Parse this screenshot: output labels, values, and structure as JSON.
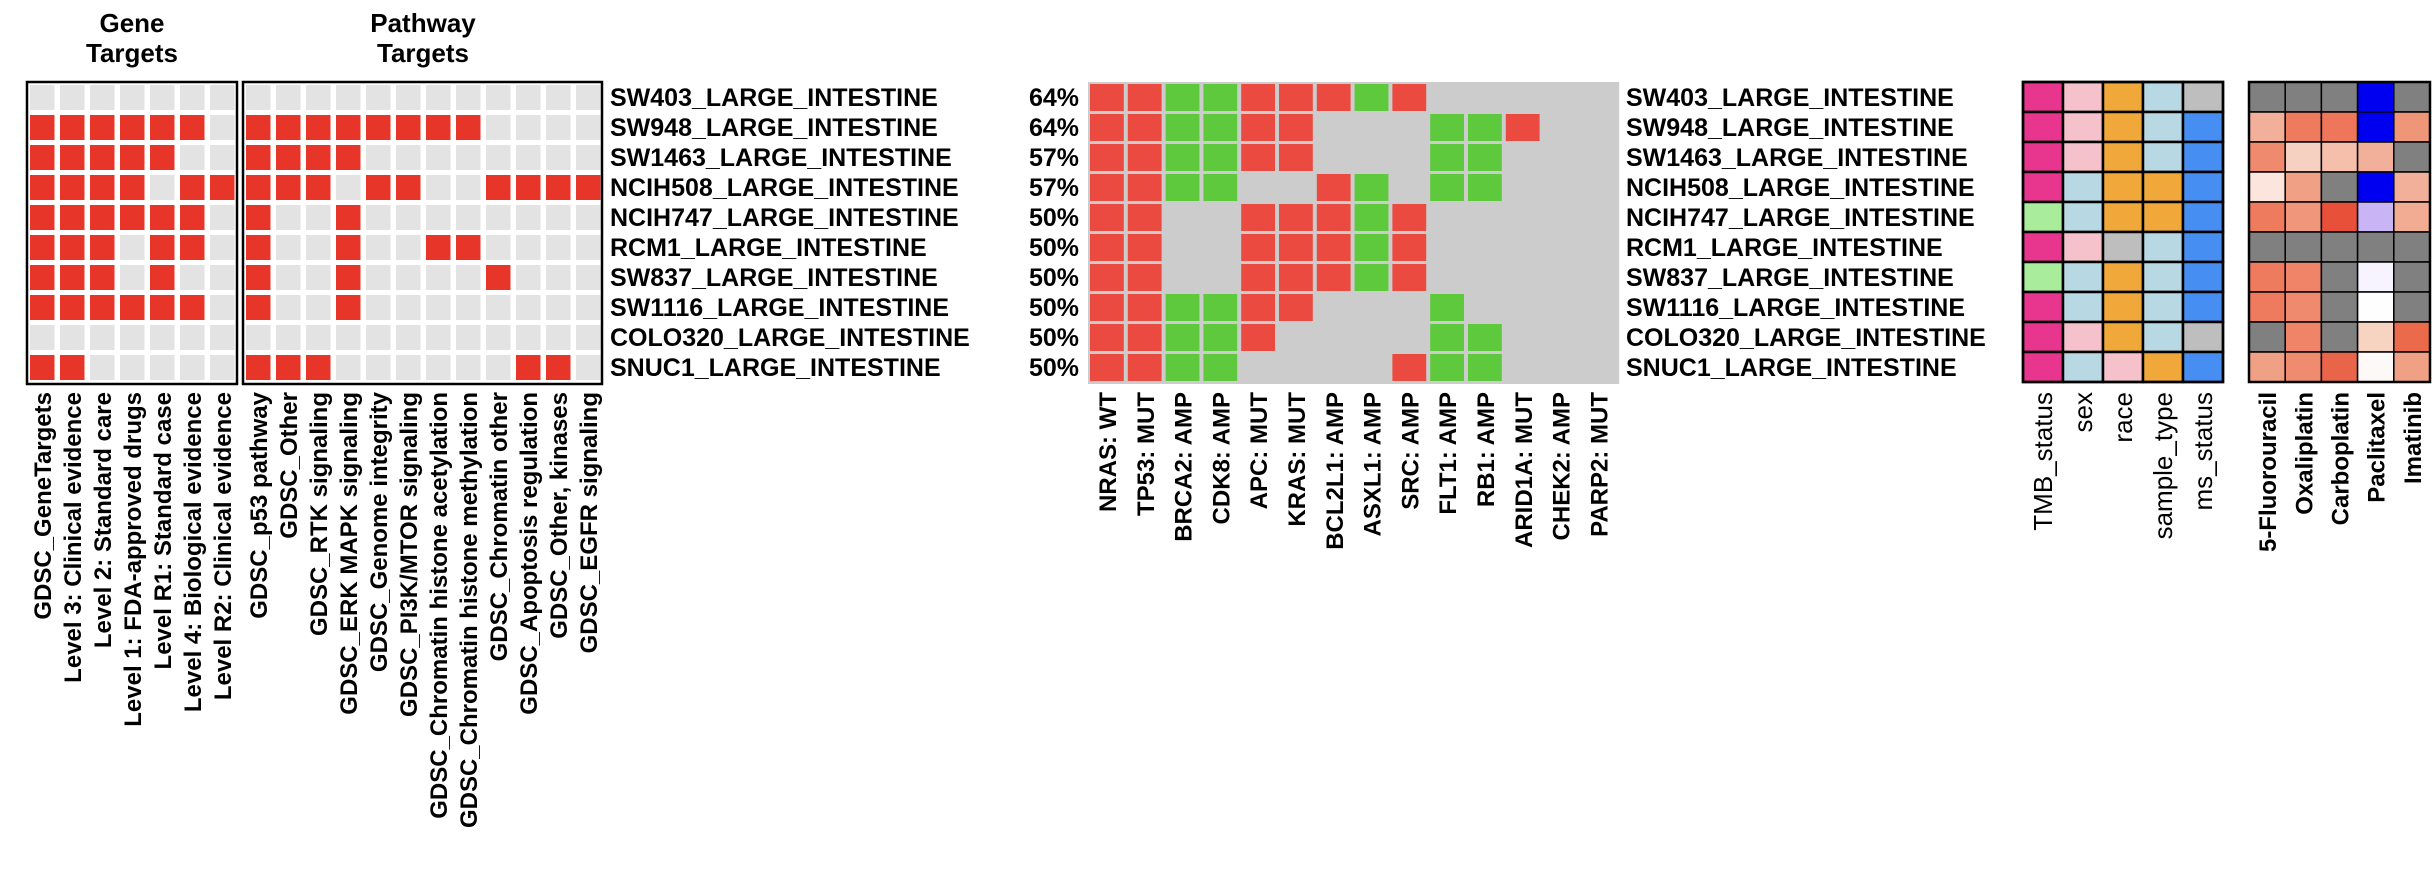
{
  "chart_data": {
    "type": "heatmap",
    "panels": {
      "gene_targets": {
        "title": [
          "Gene",
          "Targets"
        ],
        "columns": [
          "GDSC_GeneTargets",
          "Level 3: Clinical evidence",
          "Level 2: Standard care",
          "Level 1: FDA-approved drugs",
          "Level R1: Standard case",
          "Level 4: Biological evidence",
          "Level R2: Clinical evidence"
        ],
        "matrix": [
          [
            0,
            0,
            0,
            0,
            0,
            0,
            0
          ],
          [
            1,
            1,
            1,
            1,
            1,
            1,
            0
          ],
          [
            1,
            1,
            1,
            1,
            1,
            0,
            0
          ],
          [
            1,
            1,
            1,
            1,
            0,
            1,
            1
          ],
          [
            1,
            1,
            1,
            1,
            1,
            1,
            0
          ],
          [
            1,
            1,
            1,
            0,
            1,
            1,
            0
          ],
          [
            1,
            1,
            1,
            0,
            1,
            0,
            0
          ],
          [
            1,
            1,
            1,
            1,
            1,
            1,
            0
          ],
          [
            0,
            0,
            0,
            0,
            0,
            0,
            0
          ],
          [
            1,
            1,
            0,
            0,
            0,
            0,
            0
          ]
        ]
      },
      "pathway_targets": {
        "title": [
          "Pathway",
          "Targets"
        ],
        "columns": [
          "GDSC_p53 pathway",
          "GDSC_Other",
          "GDSC_RTK signaling",
          "GDSC_ERK MAPK signaling",
          "GDSC_Genome integrity",
          "GDSC_PI3K/MTOR signaling",
          "GDSC_Chromatin histone acetylation",
          "GDSC_Chromatin histone methylation",
          "GDSC_Chromatin other",
          "GDSC_Apoptosis regulation",
          "GDSC_Other, kinases",
          "GDSC_EGFR signaling"
        ],
        "matrix": [
          [
            0,
            0,
            0,
            0,
            0,
            0,
            0,
            0,
            0,
            0,
            0,
            0
          ],
          [
            1,
            1,
            1,
            1,
            1,
            1,
            1,
            1,
            0,
            0,
            0,
            0
          ],
          [
            1,
            1,
            1,
            1,
            0,
            0,
            0,
            0,
            0,
            0,
            0,
            0
          ],
          [
            1,
            1,
            1,
            0,
            1,
            1,
            0,
            0,
            1,
            1,
            1,
            1
          ],
          [
            1,
            0,
            0,
            1,
            0,
            0,
            0,
            0,
            0,
            0,
            0,
            0
          ],
          [
            1,
            0,
            0,
            1,
            0,
            0,
            1,
            1,
            0,
            0,
            0,
            0
          ],
          [
            1,
            0,
            0,
            1,
            0,
            0,
            0,
            0,
            1,
            0,
            0,
            0
          ],
          [
            1,
            0,
            0,
            1,
            0,
            0,
            0,
            0,
            0,
            0,
            0,
            0
          ],
          [
            0,
            0,
            0,
            0,
            0,
            0,
            0,
            0,
            0,
            0,
            0,
            0
          ],
          [
            1,
            1,
            1,
            0,
            0,
            0,
            0,
            0,
            0,
            1,
            1,
            0
          ]
        ]
      },
      "alterations": {
        "columns": [
          "NRAS: WT",
          "TP53: MUT",
          "BRCA2: AMP",
          "CDK8: AMP",
          "APC: MUT",
          "KRAS: MUT",
          "BCL2L1: AMP",
          "ASXL1: AMP",
          "SRC: AMP",
          "FLT1: AMP",
          "RB1: AMP",
          "ARID1A: MUT",
          "CHEK2: AMP",
          "PARP2: MUT"
        ],
        "percentages": [
          "64%",
          "64%",
          "57%",
          "57%",
          "50%",
          "50%",
          "50%",
          "50%",
          "50%",
          "50%"
        ],
        "matrix": [
          [
            "MUT",
            "MUT",
            "AMP",
            "AMP",
            "MUT",
            "MUT",
            "MUT",
            "AMP",
            "MUT",
            "",
            "",
            "",
            "",
            ""
          ],
          [
            "MUT",
            "MUT",
            "AMP",
            "AMP",
            "MUT",
            "MUT",
            "",
            "",
            "",
            "AMP",
            "AMP",
            "MUT",
            "",
            ""
          ],
          [
            "MUT",
            "MUT",
            "AMP",
            "AMP",
            "MUT",
            "MUT",
            "",
            "",
            "",
            "AMP",
            "AMP",
            "",
            "",
            ""
          ],
          [
            "MUT",
            "MUT",
            "AMP",
            "AMP",
            "",
            "",
            "MUT",
            "AMP",
            "",
            "AMP",
            "AMP",
            "",
            "",
            ""
          ],
          [
            "MUT",
            "MUT",
            "",
            "",
            "MUT",
            "MUT",
            "MUT",
            "AMP",
            "MUT",
            "",
            "",
            "",
            "",
            ""
          ],
          [
            "MUT",
            "MUT",
            "",
            "",
            "MUT",
            "MUT",
            "MUT",
            "AMP",
            "MUT",
            "",
            "",
            "",
            "",
            ""
          ],
          [
            "MUT",
            "MUT",
            "",
            "",
            "MUT",
            "MUT",
            "MUT",
            "AMP",
            "MUT",
            "",
            "",
            "",
            "",
            ""
          ],
          [
            "MUT",
            "MUT",
            "AMP",
            "AMP",
            "MUT",
            "MUT",
            "",
            "",
            "",
            "AMP",
            "",
            "",
            "",
            ""
          ],
          [
            "MUT",
            "MUT",
            "AMP",
            "AMP",
            "MUT",
            "",
            "",
            "",
            "",
            "AMP",
            "AMP",
            "",
            "",
            ""
          ],
          [
            "MUT",
            "MUT",
            "AMP",
            "AMP",
            "",
            "",
            "",
            "",
            "MUT",
            "AMP",
            "AMP",
            "",
            "",
            ""
          ]
        ]
      },
      "annotations": {
        "columns": [
          "TMB_status",
          "sex",
          "race",
          "sample_type",
          "ms_status"
        ],
        "colors": [
          [
            "#e8368f",
            "#f5c2cc",
            "#f0a83a",
            "#b8d8e3",
            "#bebebe"
          ],
          [
            "#e8368f",
            "#f5c2cc",
            "#f0a83a",
            "#b8d8e3",
            "#478ef2"
          ],
          [
            "#e8368f",
            "#f5c2cc",
            "#f0a83a",
            "#b8d8e3",
            "#478ef2"
          ],
          [
            "#e8368f",
            "#b8d8e3",
            "#f0a83a",
            "#f0a83a",
            "#478ef2"
          ],
          [
            "#a9ec9b",
            "#b8d8e3",
            "#f0a83a",
            "#f0a83a",
            "#478ef2"
          ],
          [
            "#e8368f",
            "#f5c2cc",
            "#bebebe",
            "#b8d8e3",
            "#478ef2"
          ],
          [
            "#a9ec9b",
            "#b8d8e3",
            "#f0a83a",
            "#b8d8e3",
            "#478ef2"
          ],
          [
            "#e8368f",
            "#b8d8e3",
            "#f0a83a",
            "#b8d8e3",
            "#478ef2"
          ],
          [
            "#e8368f",
            "#f5c2cc",
            "#f0a83a",
            "#b8d8e3",
            "#bebebe"
          ],
          [
            "#e8368f",
            "#b8d8e3",
            "#f5c2cc",
            "#f0a83a",
            "#478ef2"
          ]
        ]
      },
      "drugs": {
        "columns": [
          "5-Fluorouracil",
          "Oxaliplatin",
          "Carboplatin",
          "Paclitaxel",
          "Imatinib"
        ],
        "colors": [
          [
            "#808080",
            "#808080",
            "#808080",
            "#0000f0",
            "#808080"
          ],
          [
            "#f2b09a",
            "#ee7b5e",
            "#ee765a",
            "#0000f0",
            "#f09678"
          ],
          [
            "#ef8a6e",
            "#f6d0c0",
            "#f5bfab",
            "#f2b09a",
            "#808080"
          ],
          [
            "#fbe5dc",
            "#f0a085",
            "#808080",
            "#0000f0",
            "#f2b09a"
          ],
          [
            "#ee7b5e",
            "#f0967a",
            "#e9503a",
            "#c9b5f5",
            "#f2ac94"
          ],
          [
            "#808080",
            "#808080",
            "#808080",
            "#808080",
            "#808080"
          ],
          [
            "#ee7b5e",
            "#ef8468",
            "#808080",
            "#f7f4ff",
            "#808080"
          ],
          [
            "#ee7b5e",
            "#ef8a6e",
            "#808080",
            "#fefeff",
            "#808080"
          ],
          [
            "#808080",
            "#ef8468",
            "#808080",
            "#f7d3c2",
            "#eb6a4c"
          ],
          [
            "#f0a085",
            "#ef8c70",
            "#e9654a",
            "#fdf9f7",
            "#f0a085"
          ]
        ]
      }
    },
    "rows": [
      "SW403_LARGE_INTESTINE",
      "SW948_LARGE_INTESTINE",
      "SW1463_LARGE_INTESTINE",
      "NCIH508_LARGE_INTESTINE",
      "NCIH747_LARGE_INTESTINE",
      "RCM1_LARGE_INTESTINE",
      "SW837_LARGE_INTESTINE",
      "SW1116_LARGE_INTESTINE",
      "COLO320_LARGE_INTESTINE",
      "SNUC1_LARGE_INTESTINE"
    ],
    "colors": {
      "target_on": "#e8352a",
      "target_off": "#e3e3e3",
      "mut": "#ea4a3f",
      "amp": "#5ec93c",
      "oncoprint_bg": "#cccccc"
    }
  }
}
